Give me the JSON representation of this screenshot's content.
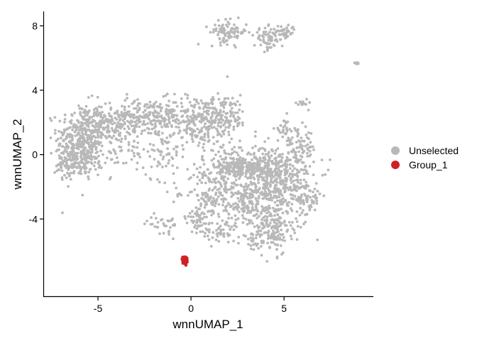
{
  "chart_data": {
    "type": "scatter",
    "title": "",
    "xlabel": "wnnUMAP_1",
    "ylabel": "wnnUMAP_2",
    "xlim": [
      -7.9,
      9.8
    ],
    "ylim": [
      -8.8,
      8.9
    ],
    "x_ticks": [
      -5,
      0,
      5
    ],
    "x_tick_labels": [
      "-5",
      "0",
      "5"
    ],
    "y_ticks": [
      -4,
      0,
      4,
      8
    ],
    "y_tick_labels": [
      "-4",
      "0",
      "4",
      "8"
    ],
    "grid": false,
    "legend_position": "right",
    "series": [
      {
        "name": "Unselected",
        "color": "#b8b8b8",
        "point_count": 3200,
        "clusters": [
          {
            "cx": -5.9,
            "cy": 1.0,
            "sx": 0.65,
            "sy": 1.1,
            "weight": 300
          },
          {
            "cx": -4.5,
            "cy": 1.9,
            "sx": 0.8,
            "sy": 0.5,
            "weight": 180
          },
          {
            "cx": -6.6,
            "cy": -0.6,
            "sx": 0.35,
            "sy": 0.5,
            "weight": 80
          },
          {
            "cx": -5.6,
            "cy": -0.2,
            "sx": 0.45,
            "sy": 0.6,
            "weight": 90
          },
          {
            "cx": -2.3,
            "cy": 2.3,
            "sx": 1.1,
            "sy": 0.6,
            "weight": 200
          },
          {
            "cx": 0.3,
            "cy": 2.1,
            "sx": 1.0,
            "sy": 0.8,
            "weight": 220
          },
          {
            "cx": 1.8,
            "cy": 2.5,
            "sx": 0.6,
            "sy": 0.6,
            "weight": 120
          },
          {
            "cx": -1.6,
            "cy": 0.1,
            "sx": 0.7,
            "sy": 0.8,
            "weight": 70
          },
          {
            "cx": 2.0,
            "cy": 7.6,
            "sx": 0.5,
            "sy": 0.35,
            "weight": 90
          },
          {
            "cx": 4.1,
            "cy": 7.2,
            "sx": 0.35,
            "sy": 0.35,
            "weight": 60
          },
          {
            "cx": 5.0,
            "cy": 7.6,
            "sx": 0.3,
            "sy": 0.25,
            "weight": 45
          },
          {
            "cx": 8.9,
            "cy": 5.7,
            "sx": 0.08,
            "sy": 0.05,
            "weight": 12
          },
          {
            "cx": 6.0,
            "cy": 3.2,
            "sx": 0.15,
            "sy": 0.15,
            "weight": 12
          },
          {
            "cx": 5.0,
            "cy": 1.5,
            "sx": 0.25,
            "sy": 0.4,
            "weight": 25
          },
          {
            "cx": 2.8,
            "cy": -0.7,
            "sx": 0.7,
            "sy": 0.3,
            "weight": 200
          },
          {
            "cx": 4.6,
            "cy": -1.6,
            "sx": 1.0,
            "sy": 1.1,
            "weight": 500
          },
          {
            "cx": 4.4,
            "cy": -4.6,
            "sx": 0.5,
            "sy": 0.8,
            "weight": 160
          },
          {
            "cx": 3.0,
            "cy": -3.2,
            "sx": 0.8,
            "sy": 0.7,
            "weight": 120
          },
          {
            "cx": 1.5,
            "cy": -1.8,
            "sx": 1.1,
            "sy": 1.3,
            "weight": 250
          },
          {
            "cx": 0.5,
            "cy": -4.0,
            "sx": 0.4,
            "sy": 0.5,
            "weight": 50
          },
          {
            "cx": -1.4,
            "cy": -4.3,
            "sx": 0.5,
            "sy": 0.3,
            "weight": 35
          },
          {
            "cx": 1.5,
            "cy": -4.9,
            "sx": 0.5,
            "sy": 0.3,
            "weight": 40
          },
          {
            "cx": 3.3,
            "cy": -5.3,
            "sx": 0.3,
            "sy": 0.2,
            "weight": 20
          },
          {
            "cx": -0.6,
            "cy": -2.5,
            "sx": 0.1,
            "sy": 0.1,
            "weight": 6
          },
          {
            "cx": 6.3,
            "cy": -2.9,
            "sx": 0.3,
            "sy": 0.7,
            "weight": 45
          },
          {
            "cx": 5.8,
            "cy": 0.5,
            "sx": 0.5,
            "sy": 0.5,
            "weight": 70
          },
          {
            "cx": -3.8,
            "cy": 0.3,
            "sx": 0.5,
            "sy": 0.8,
            "weight": 40
          }
        ]
      },
      {
        "name": "Group_1",
        "color": "#d11f26",
        "point_count": 60,
        "clusters": [
          {
            "cx": -0.3,
            "cy": -6.6,
            "sx": 0.07,
            "sy": 0.1,
            "weight": 60
          }
        ]
      }
    ]
  }
}
